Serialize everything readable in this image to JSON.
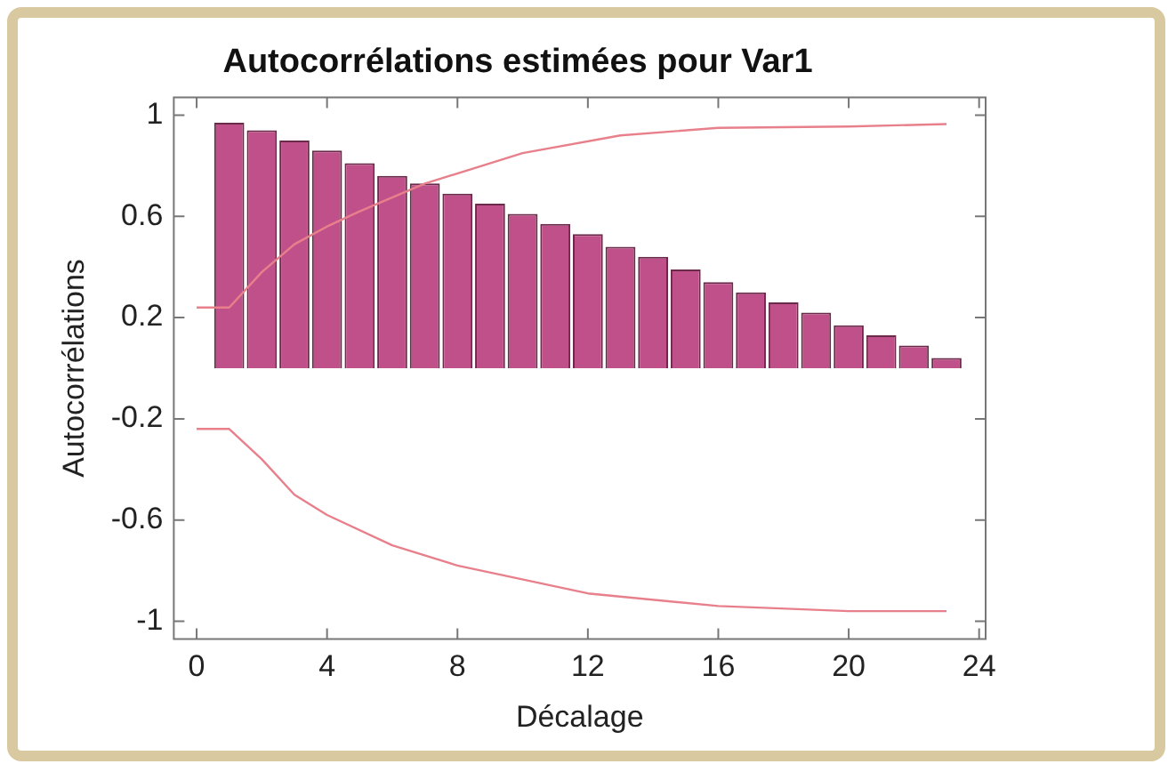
{
  "chart_data": {
    "type": "bar",
    "title": "Autocorrélations estimées pour Var1",
    "xlabel": "Décalage",
    "ylabel": "Autocorrélations",
    "xlim": [
      -0.7,
      24.2
    ],
    "xticks": [
      0,
      4,
      8,
      12,
      16,
      20,
      24
    ],
    "ylim": [
      -1.07,
      1.07
    ],
    "yticks": [
      -1,
      -0.6,
      -0.2,
      0.2,
      0.6,
      1
    ],
    "grid": false,
    "series": [
      {
        "color": "#c0508a",
        "x": [
          1,
          2,
          3,
          4,
          5,
          6,
          7,
          8,
          9,
          10,
          11,
          12,
          13,
          14,
          15,
          16,
          17,
          18,
          19,
          20,
          21,
          22,
          23
        ],
        "values": [
          0.97,
          0.94,
          0.9,
          0.86,
          0.81,
          0.76,
          0.73,
          0.69,
          0.65,
          0.61,
          0.57,
          0.53,
          0.48,
          0.44,
          0.39,
          0.34,
          0.3,
          0.26,
          0.22,
          0.17,
          0.13,
          0.09,
          0.04
        ]
      },
      {
        "type": "line",
        "color": "#e8808c",
        "x": [
          0,
          1,
          2,
          3,
          4,
          5,
          7,
          10,
          13,
          16,
          20,
          23
        ],
        "values": [
          0.24,
          0.24,
          0.38,
          0.49,
          0.56,
          0.62,
          0.73,
          0.85,
          0.92,
          0.95,
          0.955,
          0.965
        ]
      },
      {
        "type": "line",
        "color": "#e8808c",
        "x": [
          0,
          1,
          2,
          3,
          4,
          6,
          8,
          12,
          16,
          20,
          23
        ],
        "values": [
          -0.24,
          -0.24,
          -0.36,
          -0.5,
          -0.58,
          -0.7,
          -0.78,
          -0.89,
          -0.94,
          -0.96,
          -0.96
        ]
      }
    ]
  }
}
